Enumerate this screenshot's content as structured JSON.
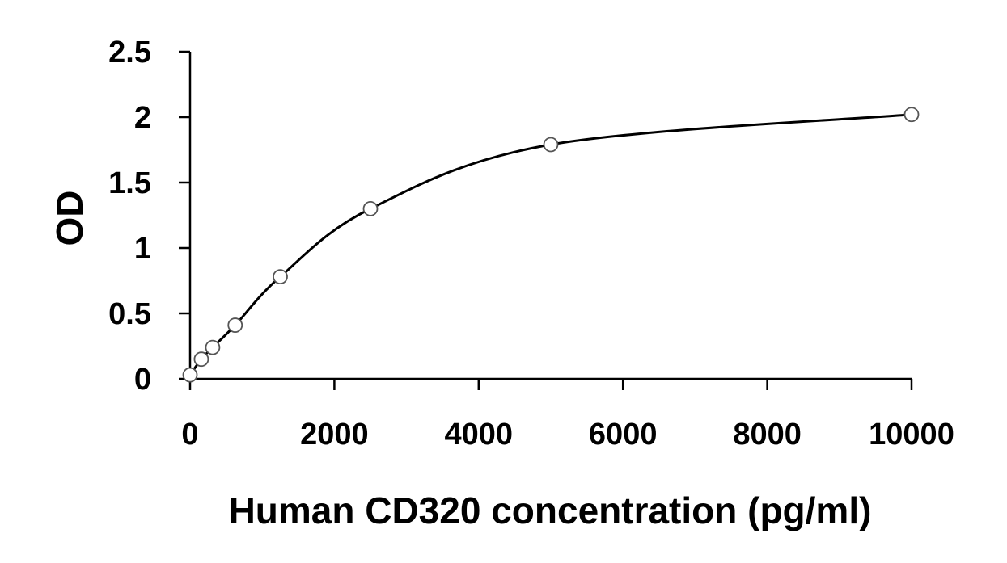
{
  "chart_data": {
    "type": "scatter",
    "title": "",
    "xlabel": "Human CD320 concentration (pg/ml)",
    "ylabel": "OD",
    "xlim": [
      0,
      10000
    ],
    "ylim": [
      0,
      2.5
    ],
    "x_ticks": [
      "0",
      "2000",
      "4000",
      "6000",
      "8000",
      "10000"
    ],
    "y_ticks": [
      "0",
      "0.5",
      "1",
      "1.5",
      "2",
      "2.5"
    ],
    "grid": false,
    "legend": "none",
    "series": [
      {
        "markers": "open-circle",
        "fit_line": "smooth",
        "points": [
          {
            "x": 0,
            "y": 0.03
          },
          {
            "x": 156,
            "y": 0.15
          },
          {
            "x": 313,
            "y": 0.24
          },
          {
            "x": 625,
            "y": 0.41
          },
          {
            "x": 1250,
            "y": 0.78
          },
          {
            "x": 2500,
            "y": 1.3
          },
          {
            "x": 5000,
            "y": 1.79
          },
          {
            "x": 10000,
            "y": 2.02
          }
        ]
      }
    ],
    "colors": {
      "line": "#000000",
      "marker_edge": "#555555",
      "marker_fill": "#ffffff"
    }
  }
}
